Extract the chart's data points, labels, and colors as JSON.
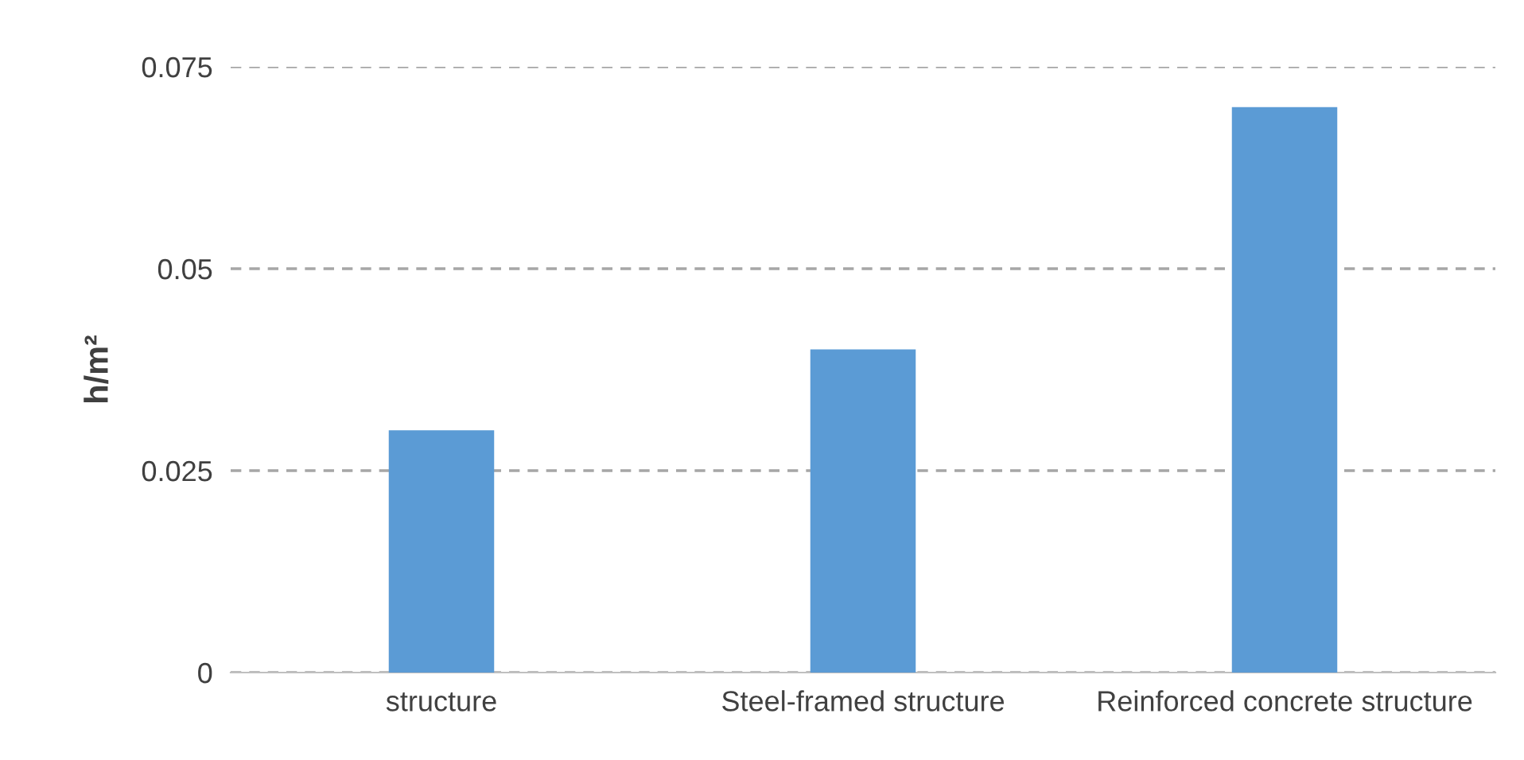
{
  "chart_data": {
    "type": "bar",
    "ylabel": "h/m²",
    "categories": [
      "structure",
      "Steel-framed structure",
      "Reinforced concrete structure"
    ],
    "series": [
      {
        "color": "#5b9bd5",
        "values": [
          0.03,
          0.04,
          0.07
        ]
      }
    ],
    "ylim": [
      0,
      0.075
    ],
    "yticks": [
      0,
      0.025,
      0.05,
      0.075
    ],
    "grid": "y",
    "legend": false
  }
}
